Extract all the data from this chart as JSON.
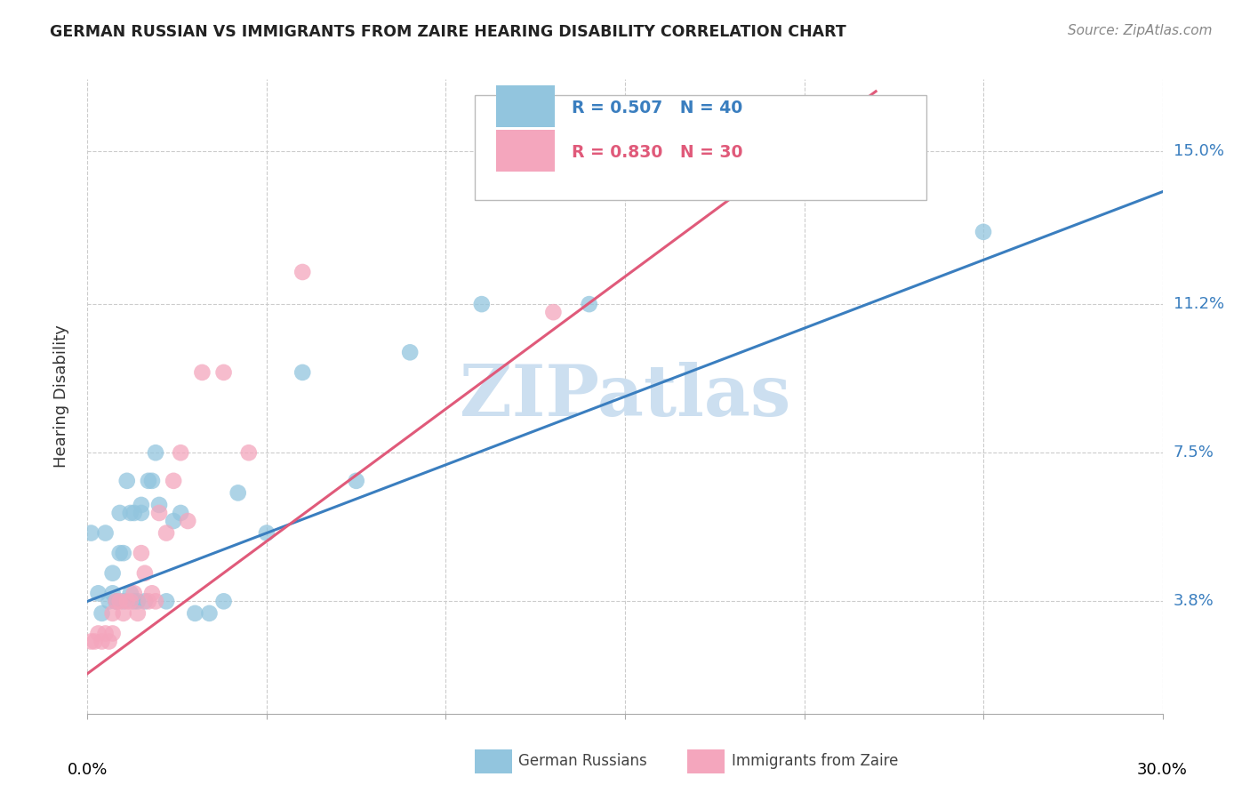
{
  "title": "GERMAN RUSSIAN VS IMMIGRANTS FROM ZAIRE HEARING DISABILITY CORRELATION CHART",
  "source": "Source: ZipAtlas.com",
  "ylabel": "Hearing Disability",
  "ytick_labels": [
    "3.8%",
    "7.5%",
    "11.2%",
    "15.0%"
  ],
  "ytick_values": [
    0.038,
    0.075,
    0.112,
    0.15
  ],
  "xlim": [
    0.0,
    0.3
  ],
  "ylim": [
    0.01,
    0.168
  ],
  "legend_line1": "R = 0.507   N = 40",
  "legend_line2": "R = 0.830   N = 30",
  "legend_label1": "German Russians",
  "legend_label2": "Immigrants from Zaire",
  "color_blue": "#92c5de",
  "color_pink": "#f4a6bd",
  "line_color_blue": "#3a7ebf",
  "line_color_pink": "#e05a7a",
  "watermark_text": "ZIPatlas",
  "watermark_color": "#ccdff0",
  "blue_scatter_x": [
    0.001,
    0.003,
    0.004,
    0.005,
    0.006,
    0.007,
    0.007,
    0.008,
    0.008,
    0.009,
    0.009,
    0.01,
    0.01,
    0.011,
    0.012,
    0.012,
    0.013,
    0.013,
    0.014,
    0.015,
    0.015,
    0.016,
    0.017,
    0.018,
    0.019,
    0.02,
    0.022,
    0.024,
    0.026,
    0.03,
    0.034,
    0.038,
    0.042,
    0.05,
    0.06,
    0.075,
    0.09,
    0.11,
    0.14,
    0.25
  ],
  "blue_scatter_y": [
    0.055,
    0.04,
    0.035,
    0.055,
    0.038,
    0.04,
    0.045,
    0.038,
    0.038,
    0.05,
    0.06,
    0.05,
    0.038,
    0.068,
    0.06,
    0.04,
    0.038,
    0.06,
    0.038,
    0.062,
    0.06,
    0.038,
    0.068,
    0.068,
    0.075,
    0.062,
    0.038,
    0.058,
    0.06,
    0.035,
    0.035,
    0.038,
    0.065,
    0.055,
    0.095,
    0.068,
    0.1,
    0.112,
    0.112,
    0.13
  ],
  "pink_scatter_x": [
    0.001,
    0.002,
    0.003,
    0.004,
    0.005,
    0.006,
    0.007,
    0.007,
    0.008,
    0.009,
    0.01,
    0.011,
    0.012,
    0.013,
    0.014,
    0.015,
    0.016,
    0.017,
    0.018,
    0.019,
    0.02,
    0.022,
    0.024,
    0.026,
    0.028,
    0.032,
    0.038,
    0.045,
    0.06,
    0.13
  ],
  "pink_scatter_y": [
    0.028,
    0.028,
    0.03,
    0.028,
    0.03,
    0.028,
    0.03,
    0.035,
    0.038,
    0.038,
    0.035,
    0.038,
    0.038,
    0.04,
    0.035,
    0.05,
    0.045,
    0.038,
    0.04,
    0.038,
    0.06,
    0.055,
    0.068,
    0.075,
    0.058,
    0.095,
    0.095,
    0.075,
    0.12,
    0.11
  ],
  "blue_line_x": [
    0.0,
    0.3
  ],
  "blue_line_y": [
    0.038,
    0.14
  ],
  "pink_line_x": [
    0.0,
    0.22
  ],
  "pink_line_y": [
    0.02,
    0.165
  ],
  "xtick_vals": [
    0.0,
    0.05,
    0.1,
    0.15,
    0.2,
    0.25,
    0.3
  ]
}
